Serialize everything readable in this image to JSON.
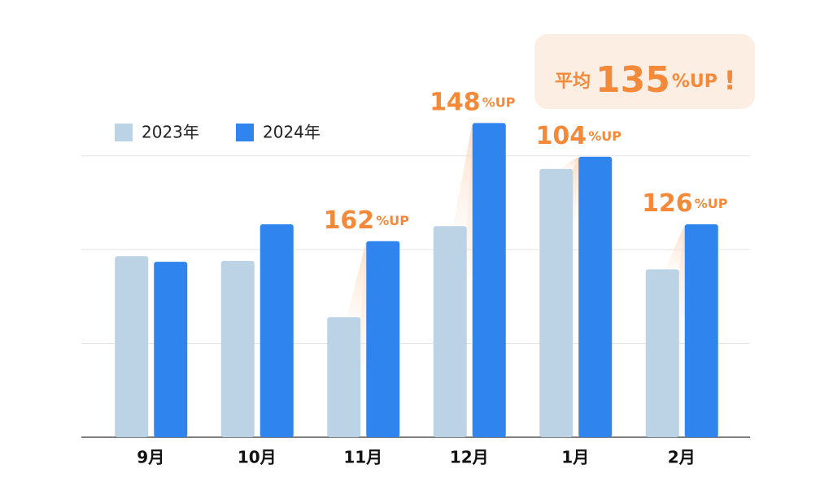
{
  "chart_data": {
    "type": "bar",
    "categories": [
      "9月",
      "10月",
      "11月",
      "12月",
      "1月",
      "2月"
    ],
    "series": [
      {
        "name": "2023年",
        "color": "#bcd3e6",
        "values": [
          1.93,
          1.88,
          1.28,
          2.25,
          2.86,
          1.79
        ]
      },
      {
        "name": "2024年",
        "color": "#2f84ee",
        "values": [
          1.87,
          2.27,
          2.09,
          3.35,
          2.99,
          2.27
        ]
      }
    ],
    "growth": [
      null,
      null,
      162,
      148,
      104,
      126
    ],
    "growth_unit": "%UP",
    "average": {
      "prefix": "平均",
      "value": 135,
      "unit": "%UP",
      "suffix": "!"
    },
    "ylim": [
      0,
      3.5
    ],
    "yticks": [
      0,
      1,
      2,
      3
    ],
    "grid": true
  }
}
